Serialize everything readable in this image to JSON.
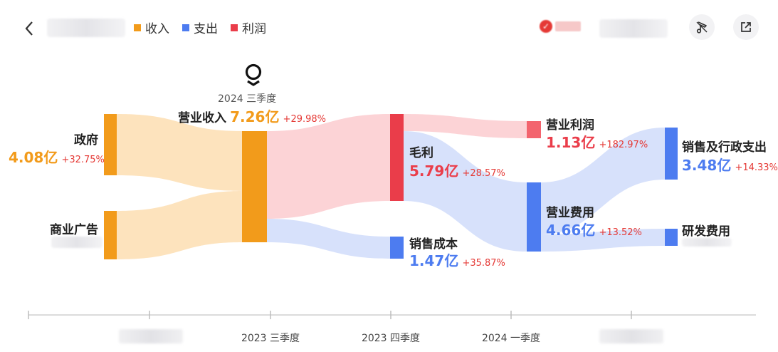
{
  "legend": [
    {
      "label": "收入",
      "color": "#f29b1b"
    },
    {
      "label": "支出",
      "color": "#4d7cf0"
    },
    {
      "label": "利润",
      "color": "#ea3d4a"
    }
  ],
  "period": {
    "title": "2024 三季度"
  },
  "nodes": {
    "gov": {
      "name": "政府",
      "value": "4.08亿",
      "pct": "+32.75%"
    },
    "ads": {
      "name": "商业广告"
    },
    "revenue": {
      "name": "营业收入",
      "value": "7.26亿",
      "pct": "+29.98%"
    },
    "gross": {
      "name": "毛利",
      "value": "5.79亿",
      "pct": "+28.57%"
    },
    "cost": {
      "name": "销售成本",
      "value": "1.47亿",
      "pct": "+35.87%"
    },
    "op_profit": {
      "name": "营业利润",
      "value": "1.13亿",
      "pct": "+182.97%"
    },
    "op_exp": {
      "name": "营业费用",
      "value": "4.66亿",
      "pct": "+13.52%"
    },
    "sga": {
      "name": "销售及行政支出",
      "value": "3.48亿",
      "pct": "+14.33%"
    },
    "rnd": {
      "name": "研发费用"
    }
  },
  "timeline": {
    "ticks": [
      "2023 三季度",
      "2023 四季度",
      "2024 一季度"
    ]
  },
  "colors": {
    "income": "#f29b1b",
    "expense": "#4d7cf0",
    "profit": "#ea3d4a",
    "income_flow": "#fde3bd",
    "expense_flow": "#d7e1fb",
    "profit_flow": "#fcd3d6"
  },
  "icons": {
    "back": "chevron-left-icon",
    "share": "external-link-icon",
    "music": "music-note-icon",
    "logo": "pin-logo-icon"
  }
}
